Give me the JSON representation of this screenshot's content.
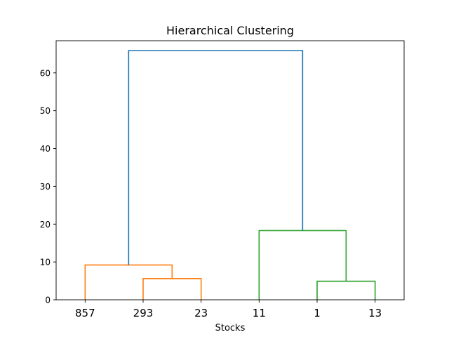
{
  "chart_data": {
    "type": "dendrogram",
    "title": "Hierarchical Clustering",
    "xlabel": "Stocks",
    "ylabel": "",
    "ylim": [
      0,
      68.5
    ],
    "yticks": [
      0,
      10,
      20,
      30,
      40,
      50,
      60
    ],
    "leaf_labels": [
      "857",
      "293",
      "23",
      "11",
      "1",
      "13"
    ],
    "links": [
      {
        "cluster": "orange",
        "leaves": [
          "293",
          "23"
        ],
        "height": 5.6
      },
      {
        "cluster": "orange",
        "leaves": [
          "857",
          "293+23"
        ],
        "height": 9.2
      },
      {
        "cluster": "green",
        "leaves": [
          "1",
          "13"
        ],
        "height": 4.9
      },
      {
        "cluster": "green",
        "leaves": [
          "11",
          "1+13"
        ],
        "height": 18.3
      },
      {
        "cluster": "root",
        "leaves": [
          "857+293+23",
          "11+1+13"
        ],
        "height": 65.9
      }
    ],
    "colors": {
      "orange": "#ff7f0e",
      "green": "#2ca02c",
      "root": "#1f77b4"
    },
    "grid": false,
    "legend": "none"
  }
}
